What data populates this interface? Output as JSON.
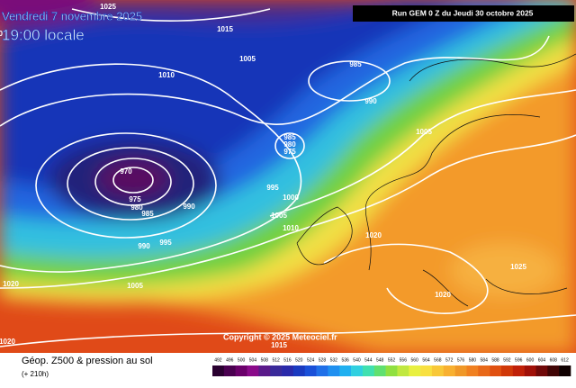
{
  "header": {
    "date": "Vendredi 7 novembre 2025",
    "time": "19:00 locale",
    "run": "Run GEM 0 Z du Jeudi 30 octobre 2025",
    "copyright": "Copyright © 2025 Meteociel.fr"
  },
  "legend": {
    "title": "Géop. Z500 & pression au sol",
    "subtitle": "(+ 210h)",
    "levels": [
      492,
      496,
      500,
      504,
      508,
      512,
      516,
      520,
      524,
      528,
      532,
      536,
      540,
      544,
      548,
      552,
      556,
      560,
      564,
      568,
      572,
      576,
      580,
      584,
      588,
      592,
      596,
      600,
      604,
      608,
      612
    ],
    "colors": [
      "#2a0030",
      "#4a0050",
      "#6a006a",
      "#8a0a8a",
      "#5a1a8a",
      "#3a2a9a",
      "#2a2aaa",
      "#1a3ac0",
      "#1a50d8",
      "#2070e8",
      "#2090f0",
      "#20b0f0",
      "#30d0e0",
      "#40e0b0",
      "#60e070",
      "#90e040",
      "#c0e840",
      "#e8f040",
      "#f8e040",
      "#f8c838",
      "#f8b030",
      "#f09828",
      "#f08020",
      "#e86818",
      "#e05010",
      "#d03808",
      "#c02008",
      "#a01008",
      "#700808",
      "#400404",
      "#100000"
    ]
  },
  "isobars": [
    "1000",
    "1025",
    "1015",
    "1005",
    "1010",
    "985",
    "990",
    "1005",
    "985",
    "980",
    "975",
    "970",
    "975",
    "980",
    "985",
    "990",
    "995",
    "1000",
    "1005",
    "1010",
    "990",
    "995",
    "1020",
    "1020",
    "1005",
    "1020",
    "1025",
    "1015",
    "1020"
  ]
}
